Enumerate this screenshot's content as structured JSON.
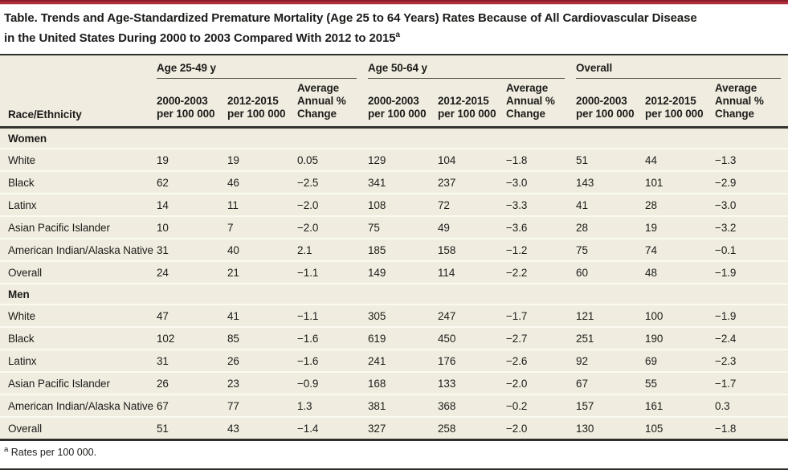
{
  "accent": {
    "bar_red": "#b12e3c",
    "table_bg": "#f0ede0",
    "rule_dark": "#2f2e29",
    "row_divider": "#fbfaf1"
  },
  "title": {
    "line1": "Table. Trends and Age-Standardized Premature Mortality (Age 25 to 64 Years) Rates Because of All Cardiovascular Disease",
    "line2": "in the United States During 2000 to 2003 Compared With 2012 to 2015",
    "line2_sup": "a"
  },
  "table": {
    "row_header": "Race/Ethnicity",
    "groups": [
      {
        "label": "Age 25-49 y",
        "cols": [
          "2000-2003\nper 100 000",
          "2012-2015\nper 100 000",
          "Average\nAnnual %\nChange"
        ]
      },
      {
        "label": "Age 50-64 y",
        "cols": [
          "2000-2003\nper 100 000",
          "2012-2015\nper 100 000",
          "Average\nAnnual %\nChange"
        ]
      },
      {
        "label": "Overall",
        "cols": [
          "2000-2003\nper 100 000",
          "2012-2015\nper 100 000",
          "Average\nAnnual %\nChange"
        ]
      }
    ],
    "sections": [
      {
        "label": "Women",
        "rows": [
          {
            "label": "White",
            "values": [
              "19",
              "19",
              "0.05",
              "129",
              "104",
              "−1.8",
              "51",
              "44",
              "−1.3"
            ]
          },
          {
            "label": "Black",
            "values": [
              "62",
              "46",
              "−2.5",
              "341",
              "237",
              "−3.0",
              "143",
              "101",
              "−2.9"
            ]
          },
          {
            "label": "Latinx",
            "values": [
              "14",
              "11",
              "−2.0",
              "108",
              "72",
              "−3.3",
              "41",
              "28",
              "−3.0"
            ]
          },
          {
            "label": "Asian Pacific Islander",
            "values": [
              "10",
              "7",
              "−2.0",
              "75",
              "49",
              "−3.6",
              "28",
              "19",
              "−3.2"
            ]
          },
          {
            "label": "American Indian/Alaska Native",
            "values": [
              "31",
              "40",
              "2.1",
              "185",
              "158",
              "−1.2",
              "75",
              "74",
              "−0.1"
            ]
          },
          {
            "label": "Overall",
            "values": [
              "24",
              "21",
              "−1.1",
              "149",
              "114",
              "−2.2",
              "60",
              "48",
              "−1.9"
            ]
          }
        ]
      },
      {
        "label": "Men",
        "rows": [
          {
            "label": "White",
            "values": [
              "47",
              "41",
              "−1.1",
              "305",
              "247",
              "−1.7",
              "121",
              "100",
              "−1.9"
            ]
          },
          {
            "label": "Black",
            "values": [
              "102",
              "85",
              "−1.6",
              "619",
              "450",
              "−2.7",
              "251",
              "190",
              "−2.4"
            ]
          },
          {
            "label": "Latinx",
            "values": [
              "31",
              "26",
              "−1.6",
              "241",
              "176",
              "−2.6",
              "92",
              "69",
              "−2.3"
            ]
          },
          {
            "label": "Asian Pacific Islander",
            "values": [
              "26",
              "23",
              "−0.9",
              "168",
              "133",
              "−2.0",
              "67",
              "55",
              "−1.7"
            ]
          },
          {
            "label": "American Indian/Alaska Native",
            "values": [
              "67",
              "77",
              "1.3",
              "381",
              "368",
              "−0.2",
              "157",
              "161",
              "0.3"
            ]
          },
          {
            "label": "Overall",
            "values": [
              "51",
              "43",
              "−1.4",
              "327",
              "258",
              "−2.0",
              "130",
              "105",
              "−1.8"
            ]
          }
        ]
      }
    ]
  },
  "footnote": {
    "marker": "a",
    "text": "Rates per 100 000."
  }
}
